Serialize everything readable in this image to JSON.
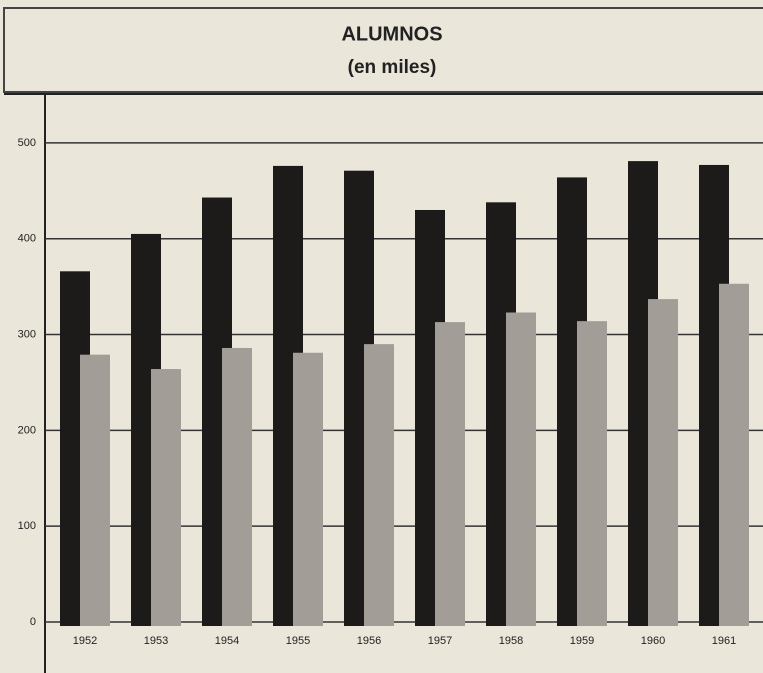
{
  "chart_data": {
    "type": "bar",
    "title": "ALUMNOS",
    "subtitle": "(en miles)",
    "categories": [
      "1952",
      "1953",
      "1954",
      "1955",
      "1956",
      "1957",
      "1958",
      "1959",
      "1960",
      "1961"
    ],
    "series": [
      {
        "color": "#1c1b1a",
        "values": [
          366,
          405,
          443,
          476,
          471,
          430,
          438,
          464,
          481,
          477
        ]
      },
      {
        "color": "#a29e97",
        "values": [
          279,
          264,
          286,
          281,
          290,
          313,
          323,
          314,
          337,
          353
        ]
      }
    ],
    "ylim": [
      0,
      550
    ],
    "yticks": [
      0,
      100,
      200,
      300,
      400,
      500
    ],
    "grid": true
  }
}
